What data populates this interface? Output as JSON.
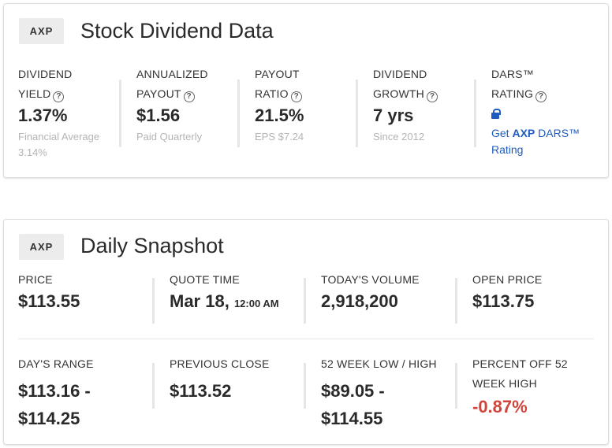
{
  "dividend_card": {
    "ticker": "AXP",
    "title": "Stock Dividend Data",
    "metrics": [
      {
        "label_line1": "DIVIDEND",
        "label_line2": "YIELD",
        "value": "1.37%",
        "sub": "Financial Average 3.14%"
      },
      {
        "label_line1": "ANNUALIZED",
        "label_line2": "PAYOUT",
        "value": "$1.56",
        "sub": "Paid Quarterly"
      },
      {
        "label_line1": "PAYOUT",
        "label_line2": "RATIO",
        "value": "21.5%",
        "sub": "EPS $7.24"
      },
      {
        "label_line1": "DIVIDEND",
        "label_line2": "GROWTH",
        "value": "7 yrs",
        "sub": "Since 2012"
      },
      {
        "label_line1": "DARS™",
        "label_line2": "RATING",
        "link_prefix": "Get ",
        "link_ticker": "AXP",
        "link_suffix": " DARS™",
        "link_line2": "Rating"
      }
    ],
    "help_glyph": "?",
    "accent_color": "#1f5cbf"
  },
  "snapshot_card": {
    "ticker": "AXP",
    "title": "Daily Snapshot",
    "row1": [
      {
        "label": "PRICE",
        "value": "$113.55"
      },
      {
        "label": "QUOTE TIME",
        "value": "Mar 18,",
        "value_small": "12:00 AM"
      },
      {
        "label": "TODAY'S VOLUME",
        "value": "2,918,200"
      },
      {
        "label": "OPEN PRICE",
        "value": "$113.75"
      }
    ],
    "row2": [
      {
        "label": "DAY'S RANGE",
        "value_line1": "$113.16 -",
        "value_line2": "$114.25"
      },
      {
        "label": "PREVIOUS CLOSE",
        "value_line1": "$113.52"
      },
      {
        "label": "52 WEEK LOW / HIGH",
        "value_line1": "$89.05 -",
        "value_line2": "$114.55"
      },
      {
        "label_line1": "PERCENT OFF 52",
        "label_line2": "WEEK HIGH",
        "value_line1": "-0.87%"
      }
    ],
    "negative_color": "#d0453b"
  }
}
